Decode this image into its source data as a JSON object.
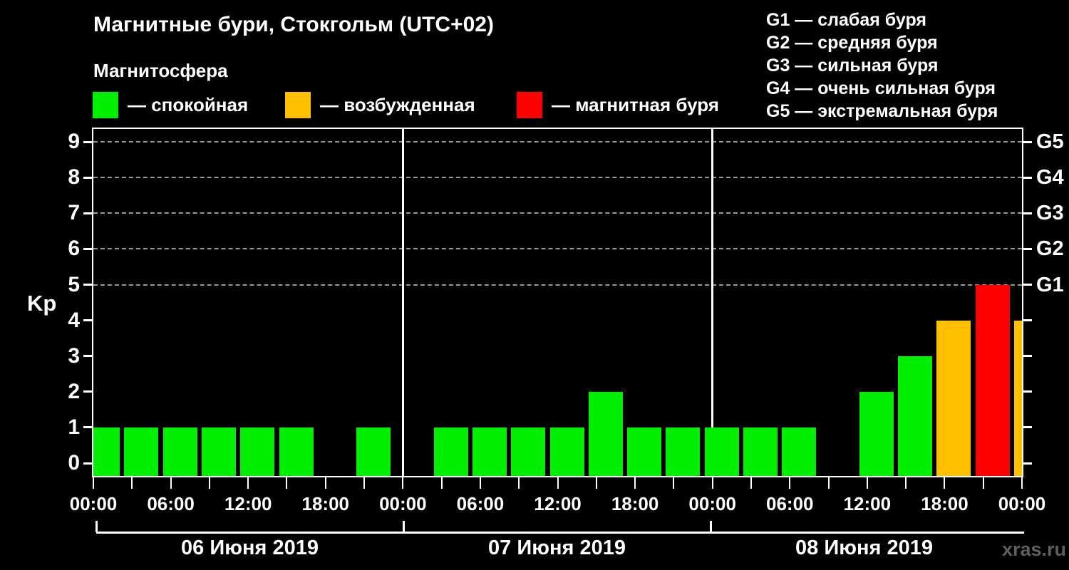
{
  "header": {
    "title": "Магнитные бури, Стокгольм (UTC+02)",
    "subtitle": "Магнитосфера",
    "watermark": "xras.ru"
  },
  "legend": {
    "items": [
      {
        "name": "quiet",
        "label": "— спокойная",
        "color": "#00ee00"
      },
      {
        "name": "excited",
        "label": "— возбужденная",
        "color": "#ffc000"
      },
      {
        "name": "storm",
        "label": "— магнитная буря",
        "color": "#ff0000"
      }
    ]
  },
  "g_scale": {
    "lines": [
      "G1 — слабая буря",
      "G2 — средняя буря",
      "G3 — сильная буря",
      "G4 — очень сильная буря",
      "G5 — экстремальная буря"
    ]
  },
  "chart_data": {
    "type": "bar",
    "title": "Магнитные бури, Стокгольм (UTC+02)",
    "subtitle": "Магнитосфера",
    "ylabel": "Kp",
    "ylim": [
      0,
      9
    ],
    "y_ticks": [
      0,
      1,
      2,
      3,
      4,
      5,
      6,
      7,
      8,
      9
    ],
    "grid_dashed_at_kp": [
      5,
      6,
      7,
      8,
      9
    ],
    "grid_color": "#999999",
    "right_axis_labels": [
      {
        "kp": 5,
        "label": "G1"
      },
      {
        "kp": 6,
        "label": "G2"
      },
      {
        "kp": 7,
        "label": "G3"
      },
      {
        "kp": 8,
        "label": "G4"
      },
      {
        "kp": 9,
        "label": "G5"
      }
    ],
    "slot_hours": 3,
    "time_labels": [
      "00:00",
      "06:00",
      "12:00",
      "18:00"
    ],
    "days": [
      {
        "date": "06 Июня 2019",
        "values": [
          1,
          1,
          1,
          1,
          1,
          1,
          0,
          1
        ]
      },
      {
        "date": "07 Июня 2019",
        "values": [
          0,
          1,
          1,
          1,
          1,
          2,
          1,
          1
        ]
      },
      {
        "date": "08 Июня 2019",
        "values": [
          1,
          1,
          1,
          0,
          2,
          3,
          4,
          5
        ]
      }
    ],
    "next_day_partial_value": 4,
    "colors": {
      "quiet": "#00ee00",
      "excited": "#ffc000",
      "storm": "#ff0000"
    },
    "color_rule": {
      "quiet_max_kp": 3,
      "excited_kp": 4,
      "storm_min_kp": 5
    },
    "legend_position": "top-left",
    "grid": "dashed horizontal at G-levels only"
  }
}
